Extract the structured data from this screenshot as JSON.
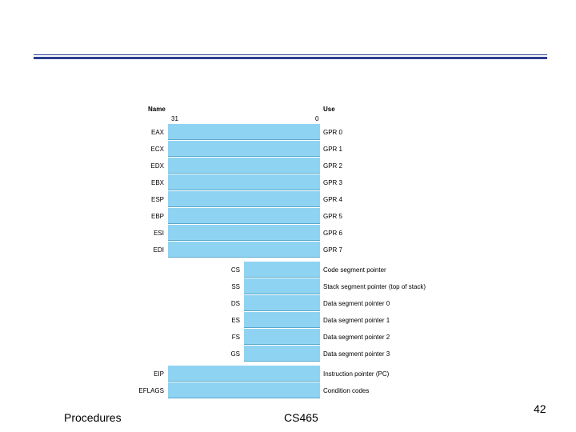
{
  "diagram": {
    "header_name": "Name",
    "header_use": "Use",
    "bit_high": "31",
    "bit_low": "0",
    "gprs": [
      {
        "name": "EAX",
        "use": "GPR 0"
      },
      {
        "name": "ECX",
        "use": "GPR 1"
      },
      {
        "name": "EDX",
        "use": "GPR 2"
      },
      {
        "name": "EBX",
        "use": "GPR 3"
      },
      {
        "name": "ESP",
        "use": "GPR 4"
      },
      {
        "name": "EBP",
        "use": "GPR 5"
      },
      {
        "name": "ESI",
        "use": "GPR 6"
      },
      {
        "name": "EDI",
        "use": "GPR 7"
      }
    ],
    "segments": [
      {
        "name": "CS",
        "use": "Code segment pointer"
      },
      {
        "name": "SS",
        "use": "Stack segment pointer (top of stack)"
      },
      {
        "name": "DS",
        "use": "Data segment pointer 0"
      },
      {
        "name": "ES",
        "use": "Data segment pointer 1"
      },
      {
        "name": "FS",
        "use": "Data segment pointer 2"
      },
      {
        "name": "GS",
        "use": "Data segment pointer 3"
      }
    ],
    "special": [
      {
        "name": "EIP",
        "use": "Instruction pointer (PC)"
      },
      {
        "name": "EFLAGS",
        "use": "Condition codes"
      }
    ]
  },
  "footer": {
    "left": "Procedures",
    "center": "CS465",
    "page": "42"
  },
  "colors": {
    "rule": "#2e3f8f",
    "register_fill": "#8fd3f3"
  }
}
